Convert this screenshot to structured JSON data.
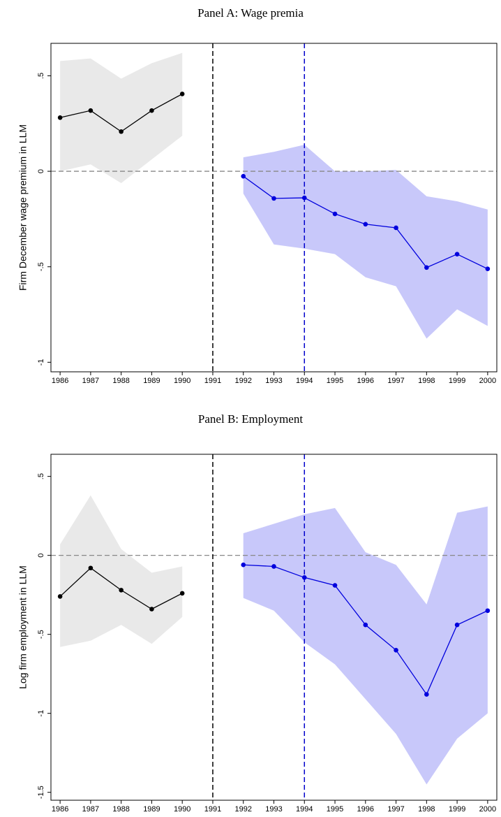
{
  "chart_data": [
    {
      "type": "line",
      "title": "Panel A: Wage premia",
      "ylabel": "Firm December wage premium in LLM",
      "xlim": [
        1985.7,
        2000.3
      ],
      "xticks": [
        1986,
        1987,
        1988,
        1989,
        1990,
        1991,
        1992,
        1993,
        1994,
        1995,
        1996,
        1997,
        1998,
        1999,
        2000
      ],
      "ylim": [
        -1.05,
        0.67
      ],
      "yticks": [
        {
          "value": -1,
          "label": "-1"
        },
        {
          "value": -0.5,
          "label": "-.5"
        },
        0,
        {
          "value": 0.5,
          "label": ".5"
        }
      ],
      "hline": 0,
      "vlines": [
        {
          "x": 1991,
          "color": "#000000"
        },
        {
          "x": 1994,
          "color": "#0000cc"
        }
      ],
      "series": [
        {
          "color": "#000000",
          "band_color": "#e9e9e9",
          "x": [
            1986,
            1987,
            1988,
            1989,
            1990
          ],
          "values": [
            0.281,
            0.318,
            0.208,
            0.318,
            0.405
          ],
          "upper": [
            0.577,
            0.591,
            0.485,
            0.566,
            0.62
          ],
          "lower": [
            0.0,
            0.036,
            -0.062,
            0.062,
            0.186
          ]
        },
        {
          "color": "#0000dd",
          "band_color": "#c8c8fa",
          "x": [
            1992,
            1993,
            1994,
            1995,
            1996,
            1997,
            1998,
            1999,
            2000
          ],
          "values": [
            -0.026,
            -0.142,
            -0.139,
            -0.223,
            -0.277,
            -0.296,
            -0.504,
            -0.434,
            -0.511
          ],
          "upper": [
            0.073,
            0.102,
            0.139,
            0.0,
            0.0,
            0.007,
            -0.131,
            -0.157,
            -0.2
          ],
          "lower": [
            -0.117,
            -0.383,
            -0.405,
            -0.434,
            -0.555,
            -0.602,
            -0.876,
            -0.723,
            -0.81
          ]
        }
      ]
    },
    {
      "type": "line",
      "title": "Panel B: Employment",
      "ylabel": "Log firm employment in LLM",
      "xlim": [
        1985.7,
        2000.3
      ],
      "xticks": [
        1986,
        1987,
        1988,
        1989,
        1990,
        1991,
        1992,
        1993,
        1994,
        1995,
        1996,
        1997,
        1998,
        1999,
        2000
      ],
      "ylim": [
        -1.55,
        0.64
      ],
      "yticks": [
        {
          "value": -1.5,
          "label": "-1.5"
        },
        {
          "value": -1,
          "label": "-1"
        },
        {
          "value": -0.5,
          "label": "-.5"
        },
        0,
        {
          "value": 0.5,
          "label": ".5"
        }
      ],
      "hline": 0,
      "vlines": [
        {
          "x": 1991,
          "color": "#000000"
        },
        {
          "x": 1994,
          "color": "#0000cc"
        }
      ],
      "series": [
        {
          "color": "#000000",
          "band_color": "#e9e9e9",
          "x": [
            1986,
            1987,
            1988,
            1989,
            1990
          ],
          "values": [
            -0.26,
            -0.08,
            -0.22,
            -0.34,
            -0.24
          ],
          "upper": [
            0.07,
            0.38,
            0.04,
            -0.11,
            -0.07
          ],
          "lower": [
            -0.58,
            -0.54,
            -0.44,
            -0.56,
            -0.39
          ]
        },
        {
          "color": "#0000dd",
          "band_color": "#c8c8fa",
          "x": [
            1992,
            1993,
            1994,
            1995,
            1996,
            1997,
            1998,
            1999,
            2000
          ],
          "values": [
            -0.06,
            -0.07,
            -0.14,
            -0.19,
            -0.44,
            -0.6,
            -0.88,
            -0.44,
            -0.35
          ],
          "upper": [
            0.14,
            0.2,
            0.26,
            0.3,
            0.02,
            -0.06,
            -0.31,
            0.27,
            0.31
          ],
          "lower": [
            -0.27,
            -0.35,
            -0.55,
            -0.69,
            -0.91,
            -1.13,
            -1.45,
            -1.16,
            -1.0
          ]
        }
      ]
    }
  ]
}
